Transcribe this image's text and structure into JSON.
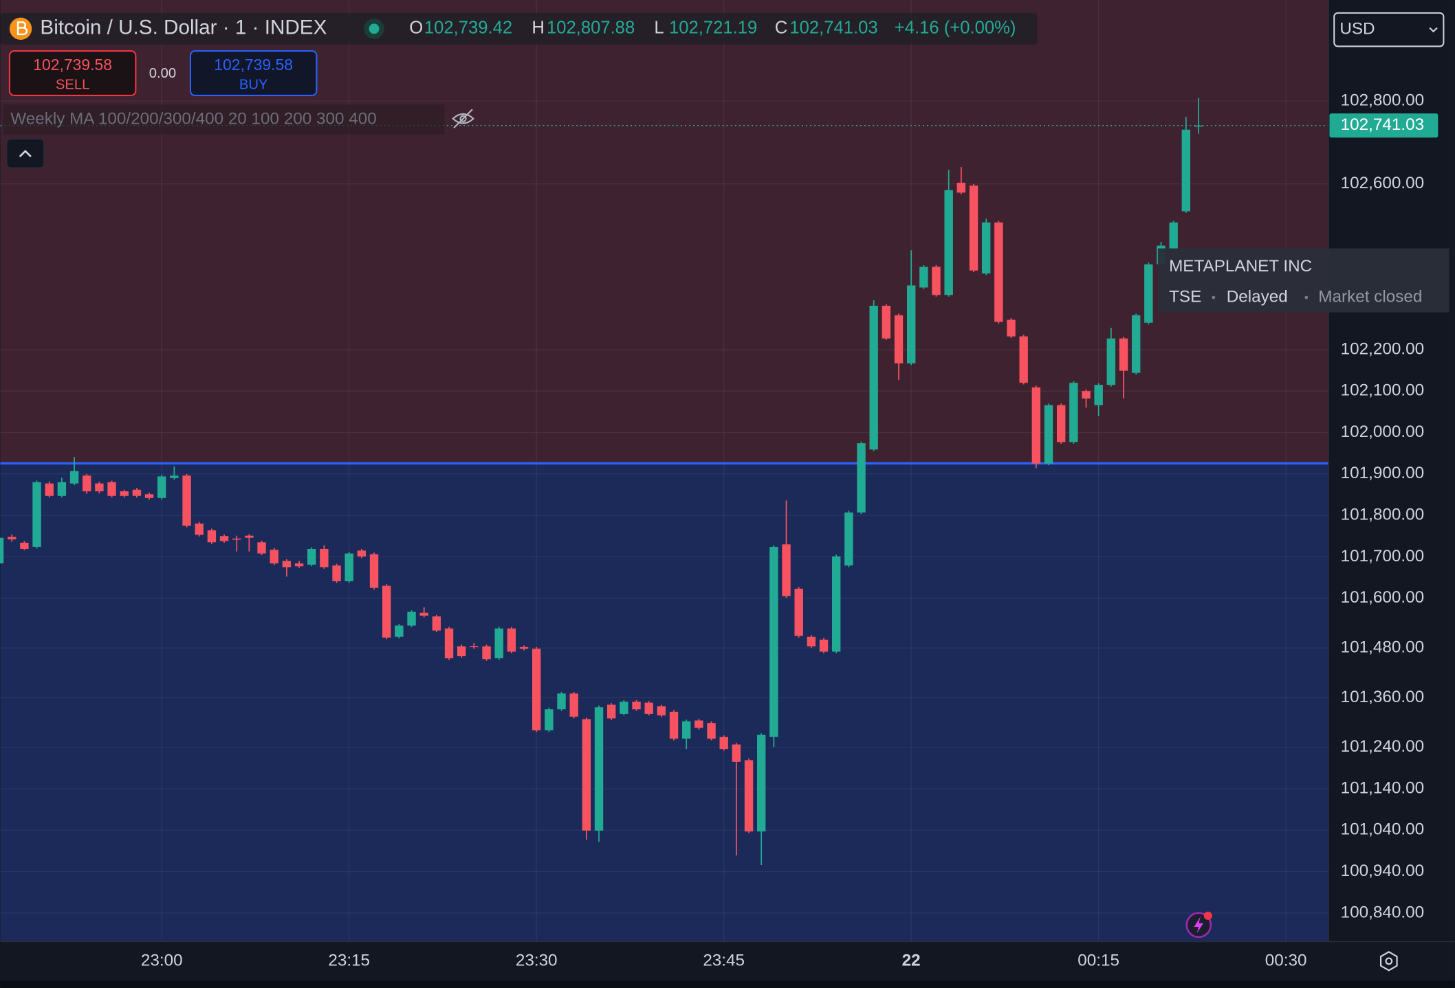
{
  "header": {
    "title": "Bitcoin / U.S. Dollar · 1 · INDEX",
    "ohlc": [
      {
        "key": "O",
        "value": "102,739.42"
      },
      {
        "key": "H",
        "value": "102,807.88"
      },
      {
        "key": "L",
        "value": "102,721.19"
      },
      {
        "key": "C",
        "value": "102,741.03"
      }
    ],
    "change": "+4.16 (+0.00%)"
  },
  "trade": {
    "sell_price": "102,739.58",
    "sell": "SELL",
    "spread": "0.00",
    "buy_price": "102,739.58",
    "buy": "BUY"
  },
  "indicator": "Weekly MA 100/200/300/400 20 100 200 300 400",
  "currency": "USD",
  "tooltip": {
    "name": "METAPLANET INC",
    "exchange": "TSE",
    "status": "Delayed",
    "market": "Market closed"
  },
  "chart_data": {
    "type": "candlestick",
    "categories": [
      null,
      null,
      null,
      null,
      null,
      null,
      null,
      null,
      null,
      null,
      null,
      null,
      null,
      "23:00",
      null,
      null,
      null,
      null,
      null,
      null,
      null,
      null,
      null,
      null,
      null,
      null,
      null,
      null,
      "23:15",
      null,
      null,
      null,
      null,
      null,
      null,
      null,
      null,
      null,
      null,
      null,
      null,
      null,
      null,
      "23:30",
      null,
      null,
      null,
      null,
      null,
      null,
      null,
      null,
      null,
      null,
      null,
      null,
      null,
      null,
      "23:45",
      null,
      null,
      null,
      null,
      null,
      null,
      null,
      null,
      null,
      null,
      null,
      null,
      null,
      null,
      "22",
      null,
      null,
      null,
      null,
      null,
      null,
      null,
      null,
      null,
      null,
      null,
      null,
      null,
      null,
      "00:15",
      null,
      null,
      null,
      null,
      null,
      null,
      null,
      null,
      null,
      null,
      null,
      null,
      null,
      null,
      "00:30"
    ],
    "open": [
      101684,
      101748,
      101734,
      101724,
      101877,
      101847,
      101877,
      101896,
      101877,
      101880,
      101858,
      101862,
      101851,
      101842,
      101890,
      101896,
      101780,
      101764,
      101750,
      101744,
      101751,
      101735,
      101717,
      101690,
      101684,
      101681,
      101719,
      101679,
      101641,
      101715,
      101706,
      101630,
      101507,
      101534,
      101565,
      101556,
      101527,
      101484,
      101485,
      101484,
      101455,
      101527,
      101482,
      101478,
      101281,
      101332,
      101370,
      101308,
      101039,
      101343,
      101321,
      101350,
      101348,
      101339,
      101326,
      101261,
      101305,
      101299,
      101265,
      101247,
      101209,
      101037,
      101265,
      101730,
      101623,
      101507,
      101500,
      101471,
      101679,
      101807,
      101959,
      102306,
      102283,
      102167,
      102350,
      102400,
      102332,
      102603,
      102596,
      102384,
      102507,
      102272,
      102232,
      102109,
      101925,
      102066,
      101977,
      102100,
      102066,
      102115,
      102227,
      102144,
      102265,
      102406,
      102444,
      102534,
      102739.42,
      null,
      null,
      null,
      null,
      null,
      null,
      null
    ],
    "high": [
      101752,
      101754,
      101738,
      101884,
      101882,
      101891,
      101941,
      101900,
      101881,
      101884,
      101862,
      101866,
      101855,
      101898,
      101918,
      101900,
      101784,
      101768,
      101754,
      101751,
      101755,
      101739,
      101721,
      101694,
      101690,
      101723,
      101728,
      101683,
      101712,
      101719,
      101710,
      101634,
      101538,
      101571,
      101578,
      101560,
      101531,
      101488,
      101492,
      101488,
      101531,
      101531,
      101486,
      101482,
      101336,
      101374,
      101374,
      101312,
      101341,
      101347,
      101354,
      101354,
      101352,
      101343,
      101330,
      101307,
      101309,
      101303,
      101269,
      101251,
      101213,
      101274,
      101728,
      101836,
      101627,
      101511,
      101504,
      101705,
      101811,
      101978,
      102319,
      102310,
      102287,
      102440,
      102404,
      102404,
      102634,
      102641,
      102600,
      102516,
      102511,
      102276,
      102236,
      102113,
      102070,
      102070,
      102124,
      102104,
      102119,
      102253,
      102231,
      102287,
      102410,
      102460,
      102511,
      102762,
      102807.88,
      null,
      null,
      null,
      null,
      null,
      null,
      null
    ],
    "low": [
      101680,
      101736,
      101716,
      101720,
      101843,
      101843,
      101873,
      101852,
      101853,
      101843,
      101843,
      101843,
      101838,
      101838,
      101886,
      101771,
      101749,
      101731,
      101734,
      101713,
      101713,
      101704,
      101680,
      101652,
      101673,
      101677,
      101671,
      101637,
      101637,
      101697,
      101621,
      101501,
      101503,
      101530,
      101554,
      101518,
      101451,
      101456,
      101478,
      101449,
      101451,
      101467,
      101474,
      101277,
      101277,
      101328,
      101310,
      101017,
      101012,
      101306,
      101317,
      101328,
      101317,
      101313,
      101257,
      101236,
      101283,
      101257,
      101232,
      100979,
      101033,
      100956,
      101241,
      101601,
      101505,
      101480,
      101467,
      101467,
      101675,
      101803,
      101955,
      102223,
      102127,
      102163,
      102346,
      102328,
      102328,
      102575,
      102387,
      102380,
      102263,
      102228,
      102116,
      101914,
      101921,
      101973,
      101973,
      102060,
      102040,
      102111,
      102082,
      102140,
      102261,
      102402,
      102440,
      102530,
      102721.19,
      null,
      null,
      null,
      null,
      null,
      null,
      null
    ],
    "close": [
      101746,
      101742,
      101719,
      101880,
      101847,
      101880,
      101907,
      101858,
      101858,
      101847,
      101847,
      101847,
      101842,
      101894,
      101896,
      101775,
      101753,
      101735,
      101738,
      101742,
      101746,
      101708,
      101684,
      101675,
      101677,
      101719,
      101675,
      101641,
      101708,
      101701,
      101625,
      101505,
      101534,
      101567,
      101558,
      101522,
      101455,
      101460,
      101483,
      101453,
      101527,
      101471,
      101478,
      101281,
      101332,
      101370,
      101314,
      101039,
      101337,
      101310,
      101350,
      101332,
      101321,
      101317,
      101261,
      101303,
      101287,
      101261,
      101236,
      101205,
      101037,
      101270,
      101724,
      101605,
      101509,
      101484,
      101471,
      101701,
      101807,
      101974,
      102306,
      102227,
      102167,
      102355,
      102400,
      102332,
      102585,
      102579,
      102391,
      102507,
      102267,
      102232,
      102120,
      101925,
      102066,
      101977,
      102120,
      102082,
      102115,
      102227,
      102149,
      102283,
      102406,
      102451,
      102507,
      102731,
      102741.03,
      null,
      null,
      null,
      null,
      null,
      null,
      null
    ],
    "up_color": "#22ab94",
    "down_color": "#f7525f",
    "ylim": [
      100771,
      103044
    ],
    "yticks": [
      {
        "value": 102800,
        "label": "102,800.00"
      },
      {
        "value": 102600,
        "label": "102,600.00"
      },
      {
        "value": 102200,
        "label": "102,200.00"
      },
      {
        "value": 102100,
        "label": "102,100.00"
      },
      {
        "value": 102000,
        "label": "102,000.00"
      },
      {
        "value": 101900,
        "label": "101,900.00"
      },
      {
        "value": 101800,
        "label": "101,800.00"
      },
      {
        "value": 101700,
        "label": "101,700.00"
      },
      {
        "value": 101600,
        "label": "101,600.00"
      },
      {
        "value": 101480,
        "label": "101,480.00"
      },
      {
        "value": 101360,
        "label": "101,360.00"
      },
      {
        "value": 101240,
        "label": "101,240.00"
      },
      {
        "value": 101140,
        "label": "101,140.00"
      },
      {
        "value": 101040,
        "label": "101,040.00"
      },
      {
        "value": 100940,
        "label": "100,940.00"
      },
      {
        "value": 100840,
        "label": "100,840.00"
      }
    ],
    "grid": true
  }
}
